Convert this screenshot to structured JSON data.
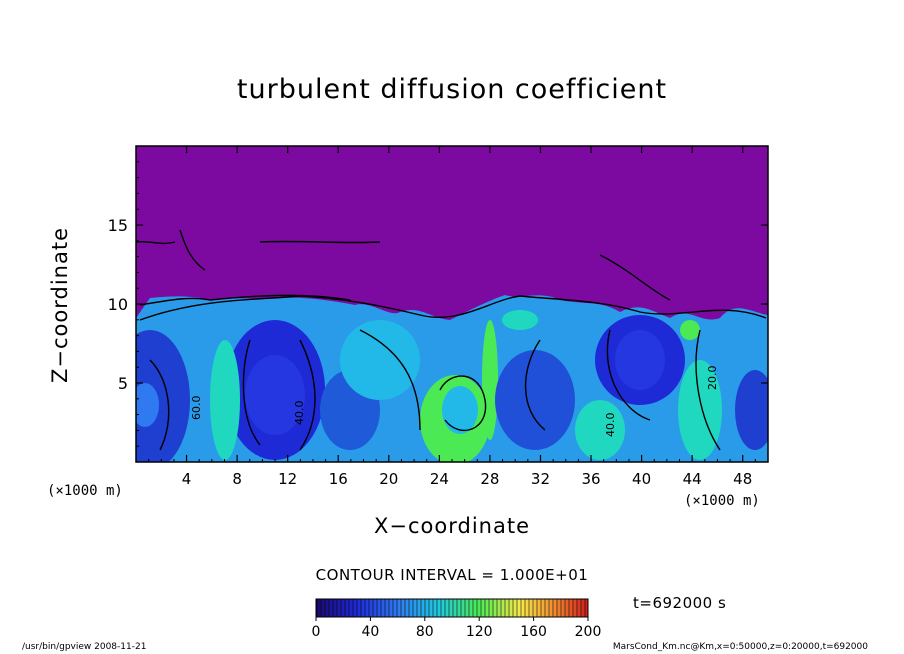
{
  "chart_data": {
    "type": "heatmap",
    "title": "turbulent diffusion coefficient",
    "xlabel": "X−coordinate",
    "ylabel": "Z−coordinate",
    "x_unit_left": "(×1000 m)",
    "x_unit_right": "(×1000 m)",
    "x_ticks": [
      "4",
      "8",
      "12",
      "16",
      "20",
      "24",
      "28",
      "32",
      "36",
      "40",
      "44",
      "48"
    ],
    "x_tick_values": [
      4,
      8,
      12,
      16,
      20,
      24,
      28,
      32,
      36,
      40,
      44,
      48
    ],
    "y_ticks": [
      "5",
      "10",
      "15"
    ],
    "y_tick_values": [
      5,
      10,
      15
    ],
    "xlim": [
      0,
      50
    ],
    "ylim": [
      0,
      20
    ],
    "contour_labels": [
      "60.0",
      "40.0",
      "40.0",
      "20.0",
      "60.0",
      "60.0",
      "40.0"
    ],
    "contour_interval": "CONTOUR INTERVAL = 1.000E+01",
    "colorbar": {
      "ticks": [
        "0",
        "40",
        "80",
        "120",
        "160",
        "200"
      ],
      "tick_values": [
        0,
        40,
        80,
        120,
        160,
        200
      ],
      "range": [
        0,
        200
      ]
    },
    "time_label": "t=692000 s",
    "colors": {
      "stable_layer": "#7d0aa0",
      "low": "#1e2ad6",
      "mid_low": "#2f7af0",
      "mid": "#22b8e8",
      "mid_high": "#20d7c0",
      "high": "#4bea55",
      "peak": "#f6e84a"
    }
  },
  "footer": {
    "left": "/usr/bin/gpview   2008-11-21",
    "right": "MarsCond_Km.nc@Km,x=0:50000,z=0:20000,t=692000"
  }
}
